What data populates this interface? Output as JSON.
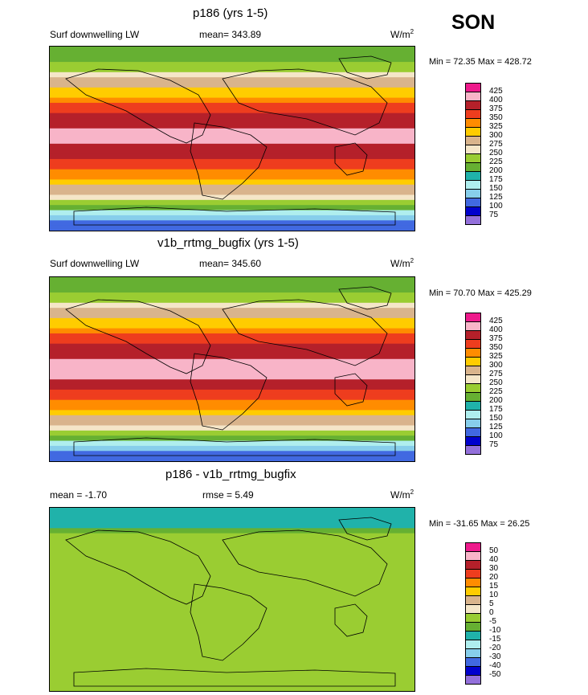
{
  "season": "SON",
  "unit_base": "W/m",
  "unit_exp": "2",
  "panels": [
    {
      "title": "p186 (yrs 1-5)",
      "left_label": "Surf downwelling LW",
      "mean_label": "mean= 343.89",
      "minmax": "Min =  72.35 Max = 428.72",
      "colorbar": {
        "labels": [
          "425",
          "400",
          "375",
          "350",
          "325",
          "300",
          "275",
          "250",
          "225",
          "200",
          "175",
          "150",
          "125",
          "100",
          "75"
        ],
        "colors": [
          "#ee1a8c",
          "#f8b4c8",
          "#b5202a",
          "#ee3d1e",
          "#ff8c00",
          "#ffcc00",
          "#d9b48c",
          "#f5e6c8",
          "#9acd32",
          "#66b032",
          "#20b2aa",
          "#afeeee",
          "#87ceeb",
          "#4169e1",
          "#0000cd",
          "#9370db"
        ]
      }
    },
    {
      "title": "v1b_rrtmg_bugfix (yrs 1-5)",
      "left_label": "Surf downwelling LW",
      "mean_label": "mean= 345.60",
      "minmax": "Min =  70.70 Max = 425.29",
      "colorbar": {
        "labels": [
          "425",
          "400",
          "375",
          "350",
          "325",
          "300",
          "275",
          "250",
          "225",
          "200",
          "175",
          "150",
          "125",
          "100",
          "75"
        ],
        "colors": [
          "#ee1a8c",
          "#f8b4c8",
          "#b5202a",
          "#ee3d1e",
          "#ff8c00",
          "#ffcc00",
          "#d9b48c",
          "#f5e6c8",
          "#9acd32",
          "#66b032",
          "#20b2aa",
          "#afeeee",
          "#87ceeb",
          "#4169e1",
          "#0000cd",
          "#9370db"
        ]
      }
    },
    {
      "title": "p186 - v1b_rrtmg_bugfix",
      "left_label": "mean =  -1.70",
      "mean_label": "rmse =   5.49",
      "minmax": "Min = -31.65 Max =  26.25",
      "colorbar": {
        "labels": [
          "50",
          "40",
          "30",
          "20",
          "15",
          "10",
          "5",
          "0",
          "-5",
          "-10",
          "-15",
          "-20",
          "-30",
          "-40",
          "-50"
        ],
        "colors": [
          "#ee1a8c",
          "#f8b4c8",
          "#b5202a",
          "#ee3d1e",
          "#ff8c00",
          "#ffcc00",
          "#d9b48c",
          "#f5e6c8",
          "#9acd32",
          "#66b032",
          "#20b2aa",
          "#afeeee",
          "#87ceeb",
          "#4169e1",
          "#0000cd",
          "#9370db"
        ]
      }
    }
  ],
  "chart_data": [
    {
      "type": "heatmap",
      "title": "p186 (yrs 1-5)",
      "field": "Surf downwelling LW",
      "units": "W/m2",
      "mean": 343.89,
      "min": 72.35,
      "max": 428.72,
      "levels": [
        75,
        100,
        125,
        150,
        175,
        200,
        225,
        250,
        275,
        300,
        325,
        350,
        375,
        400,
        425
      ],
      "latitude_band_estimates": [
        {
          "lat": 80,
          "value": 200
        },
        {
          "lat": 60,
          "value": 270
        },
        {
          "lat": 40,
          "value": 330
        },
        {
          "lat": 20,
          "value": 385
        },
        {
          "lat": 0,
          "value": 410
        },
        {
          "lat": -20,
          "value": 380
        },
        {
          "lat": -40,
          "value": 320
        },
        {
          "lat": -60,
          "value": 260
        },
        {
          "lat": -80,
          "value": 110
        }
      ]
    },
    {
      "type": "heatmap",
      "title": "v1b_rrtmg_bugfix (yrs 1-5)",
      "field": "Surf downwelling LW",
      "units": "W/m2",
      "mean": 345.6,
      "min": 70.7,
      "max": 425.29,
      "levels": [
        75,
        100,
        125,
        150,
        175,
        200,
        225,
        250,
        275,
        300,
        325,
        350,
        375,
        400,
        425
      ],
      "latitude_band_estimates": [
        {
          "lat": 80,
          "value": 205
        },
        {
          "lat": 60,
          "value": 272
        },
        {
          "lat": 40,
          "value": 332
        },
        {
          "lat": 20,
          "value": 387
        },
        {
          "lat": 0,
          "value": 412
        },
        {
          "lat": -20,
          "value": 382
        },
        {
          "lat": -40,
          "value": 322
        },
        {
          "lat": -60,
          "value": 262
        },
        {
          "lat": -80,
          "value": 112
        }
      ]
    },
    {
      "type": "heatmap",
      "title": "p186 - v1b_rrtmg_bugfix",
      "units": "W/m2",
      "mean": -1.7,
      "rmse": 5.49,
      "min": -31.65,
      "max": 26.25,
      "levels": [
        -50,
        -40,
        -30,
        -20,
        -15,
        -10,
        -5,
        0,
        5,
        10,
        15,
        20,
        30,
        40,
        50
      ],
      "latitude_band_estimates": [
        {
          "lat": 80,
          "value": -15
        },
        {
          "lat": 60,
          "value": -3
        },
        {
          "lat": 40,
          "value": -2
        },
        {
          "lat": 20,
          "value": -1
        },
        {
          "lat": 0,
          "value": -2
        },
        {
          "lat": -20,
          "value": -2
        },
        {
          "lat": -40,
          "value": 0
        },
        {
          "lat": -60,
          "value": -3
        },
        {
          "lat": -80,
          "value": -1
        }
      ]
    }
  ]
}
